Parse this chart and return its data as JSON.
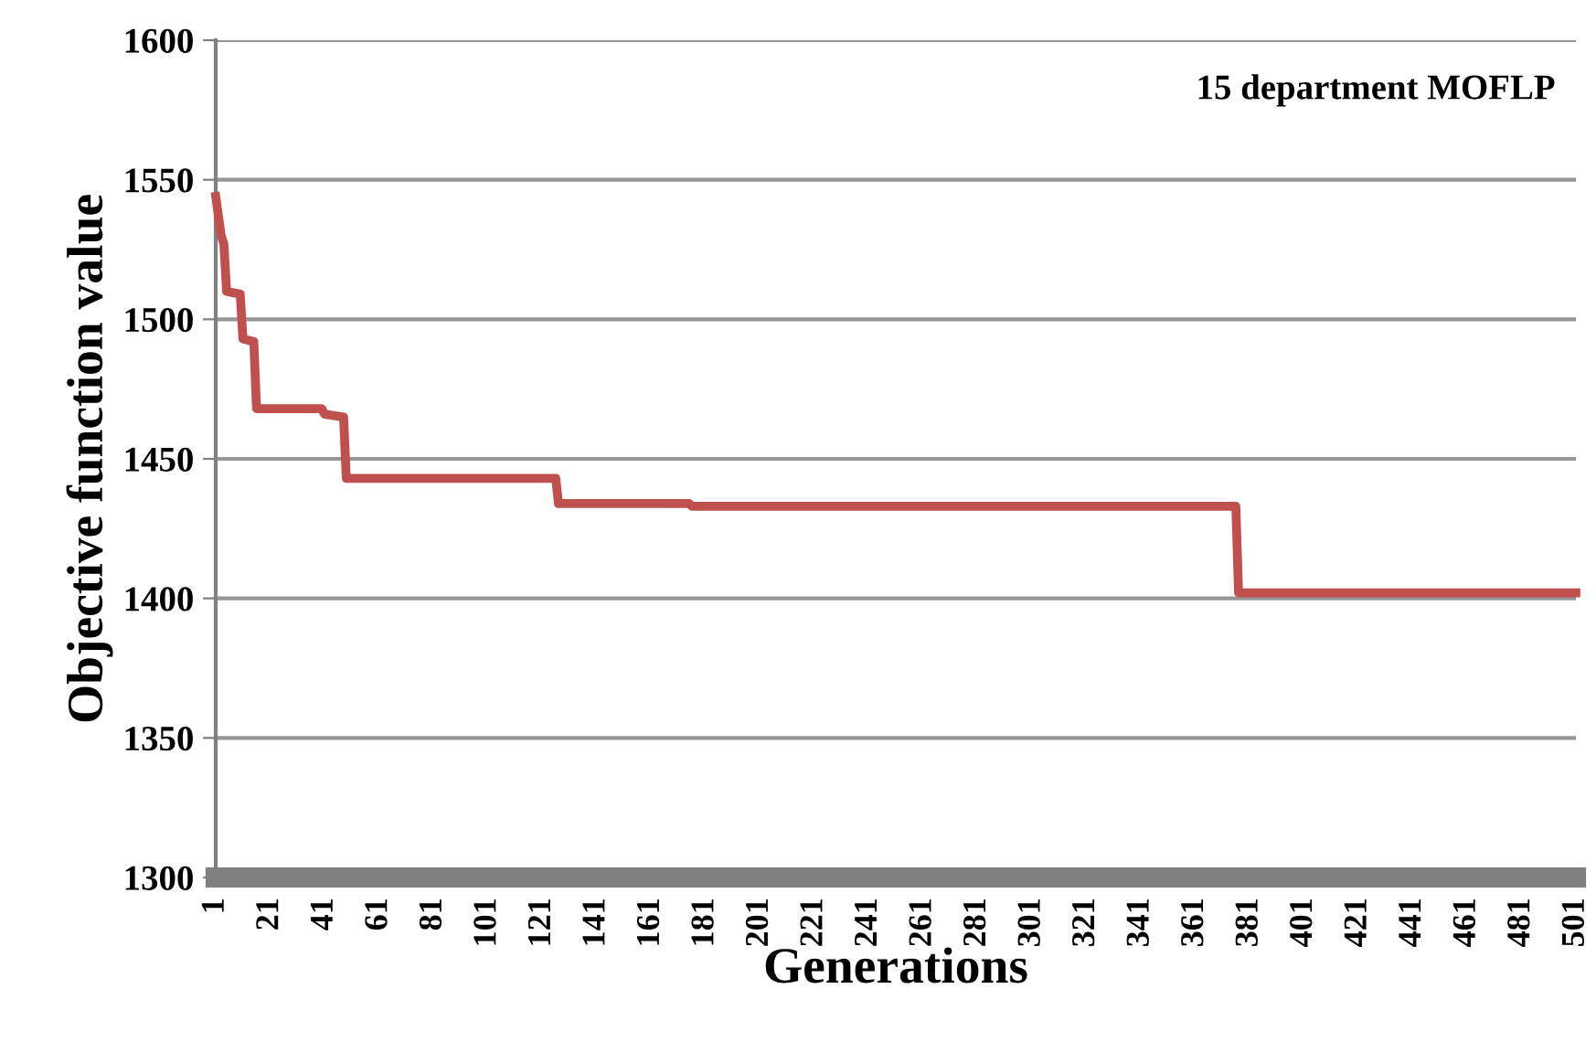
{
  "chart_data": {
    "type": "line",
    "xlabel": "Generations",
    "ylabel": "Objective function value",
    "annotations": [
      "15 department MOFLP"
    ],
    "x": [
      1,
      3,
      4,
      5,
      10,
      11,
      15,
      16,
      40,
      41,
      48,
      49,
      126,
      127,
      175,
      176,
      376,
      377,
      501
    ],
    "series": [
      {
        "color": "#c0504d",
        "values": [
          1544,
          1530,
          1527,
          1510,
          1509,
          1493,
          1492,
          1468,
          1468,
          1466,
          1465,
          1443,
          1443,
          1434,
          1434,
          1433,
          1433,
          1402,
          1402
        ]
      }
    ],
    "xlim": [
      1,
      501
    ],
    "xticks": [
      1,
      21,
      41,
      61,
      81,
      101,
      121,
      141,
      161,
      181,
      201,
      221,
      241,
      261,
      281,
      301,
      321,
      341,
      361,
      381,
      401,
      421,
      441,
      461,
      481,
      501
    ],
    "ylim": [
      1300,
      1600
    ],
    "yticks": [
      1300,
      1350,
      1400,
      1450,
      1500,
      1550,
      1600
    ],
    "grid": "y",
    "legend": false,
    "marker": "none",
    "line_style": "solid"
  }
}
